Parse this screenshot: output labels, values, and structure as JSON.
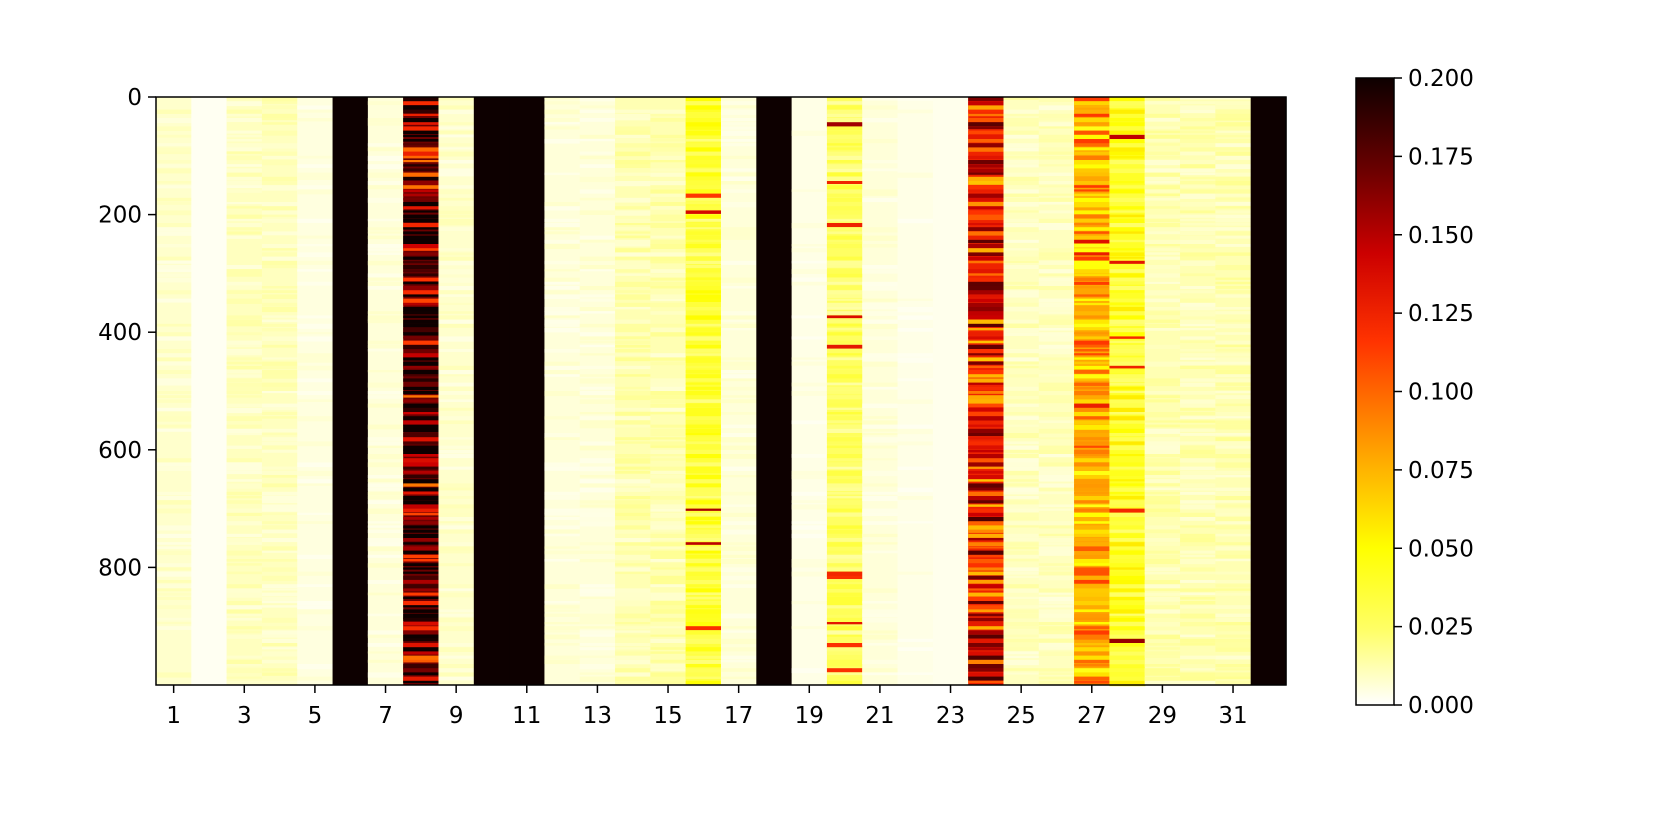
{
  "chart_data": {
    "type": "heatmap",
    "title": "",
    "xlabel": "",
    "ylabel": "",
    "columns": 32,
    "rows": 1000,
    "x_tick_labels": [
      "1",
      "3",
      "5",
      "7",
      "9",
      "11",
      "13",
      "15",
      "17",
      "19",
      "21",
      "23",
      "25",
      "27",
      "29",
      "31"
    ],
    "x_tick_values": [
      1,
      3,
      5,
      7,
      9,
      11,
      13,
      15,
      17,
      19,
      21,
      23,
      25,
      27,
      29,
      31
    ],
    "y_tick_labels": [
      "0",
      "200",
      "400",
      "600",
      "800"
    ],
    "y_tick_values": [
      0,
      200,
      400,
      600,
      800
    ],
    "ylim": [
      1000,
      0
    ],
    "colormap": "hot_r",
    "colormap_stops": [
      "#ffffff",
      "#ffff66",
      "#ffff00",
      "#ffa500",
      "#ff3300",
      "#cc0000",
      "#660000",
      "#0d0000"
    ],
    "color_range": [
      0.0,
      0.2
    ],
    "colorbar_ticks": [
      "0.000",
      "0.025",
      "0.050",
      "0.075",
      "0.100",
      "0.125",
      "0.150",
      "0.175",
      "0.200"
    ],
    "colorbar_tick_values": [
      0.0,
      0.025,
      0.05,
      0.075,
      0.1,
      0.125,
      0.15,
      0.175,
      0.2
    ],
    "column_mean_values": [
      0.008,
      0.002,
      0.01,
      0.01,
      0.005,
      0.2,
      0.006,
      0.17,
      0.008,
      0.2,
      0.2,
      0.006,
      0.006,
      0.012,
      0.012,
      0.035,
      0.006,
      0.2,
      0.004,
      0.025,
      0.006,
      0.004,
      0.003,
      0.125,
      0.01,
      0.01,
      0.08,
      0.04,
      0.012,
      0.012,
      0.012,
      0.2
    ],
    "grid": false,
    "legend": "colorbar-right"
  }
}
